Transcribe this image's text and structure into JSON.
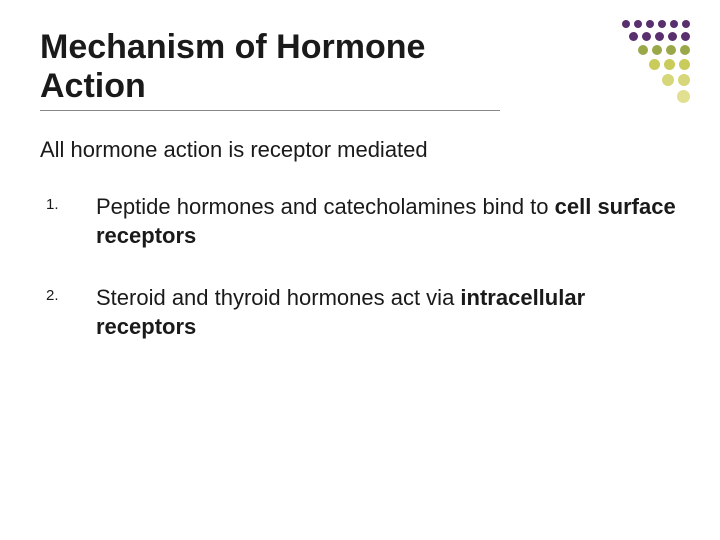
{
  "slide": {
    "title": "Mechanism of Hormone Action",
    "intro": "All hormone action is receptor mediated",
    "items": [
      {
        "marker": "1.",
        "pre": "Peptide hormones and catecholamines bind to ",
        "bold": "cell surface receptors"
      },
      {
        "marker": "2.",
        "pre": "Steroid and thyroid hormones act via ",
        "bold": "intracellular receptors"
      }
    ]
  },
  "decoration": {
    "rows": [
      {
        "count": 6,
        "size": 8,
        "color": "#5a2f6e"
      },
      {
        "count": 5,
        "size": 9,
        "color": "#5a2f6e"
      },
      {
        "count": 4,
        "size": 10,
        "color": "#9ba84a"
      },
      {
        "count": 3,
        "size": 11,
        "color": "#c9cc5a"
      },
      {
        "count": 2,
        "size": 12,
        "color": "#d6d67a"
      },
      {
        "count": 1,
        "size": 13,
        "color": "#e0e090"
      }
    ]
  },
  "colors": {
    "background": "#ffffff",
    "text": "#1a1a1a",
    "title_underline": "#888888"
  }
}
